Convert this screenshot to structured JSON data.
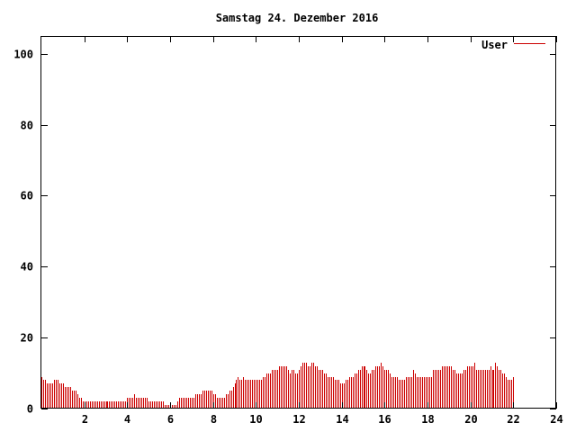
{
  "chart_data": {
    "type": "bar",
    "title": "Samstag 24. Dezember 2016",
    "xlabel": "",
    "ylabel": "",
    "xlim": [
      0,
      24
    ],
    "ylim": [
      0,
      105
    ],
    "xticks": [
      2,
      4,
      6,
      8,
      10,
      12,
      14,
      16,
      18,
      20,
      22,
      24
    ],
    "yticks": [
      0,
      20,
      40,
      60,
      80,
      100
    ],
    "xtick_labels": [
      "2",
      "4",
      "6",
      "8",
      "10",
      "12",
      "14",
      "16",
      "18",
      "20",
      "22",
      "24"
    ],
    "ytick_labels": [
      "0",
      "20",
      "40",
      "60",
      "80",
      "100"
    ],
    "grid": false,
    "legend_position": "top-right",
    "color": "#cc0000",
    "series": [
      {
        "name": "User",
        "sample_interval_minutes": 5,
        "values": [
          9,
          8,
          8,
          7,
          7,
          7,
          7,
          8,
          8,
          8,
          7,
          7,
          7,
          6,
          6,
          6,
          6,
          5,
          5,
          5,
          4,
          3,
          3,
          2,
          2,
          2,
          2,
          2,
          2,
          2,
          2,
          2,
          2,
          2,
          2,
          2,
          2,
          2,
          2,
          2,
          2,
          2,
          2,
          2,
          2,
          2,
          2,
          2,
          3,
          3,
          3,
          3,
          4,
          3,
          3,
          3,
          3,
          3,
          3,
          3,
          2,
          2,
          2,
          2,
          2,
          2,
          2,
          2,
          2,
          1,
          1,
          1,
          1,
          1,
          1,
          1,
          2,
          3,
          3,
          3,
          3,
          3,
          3,
          3,
          3,
          3,
          4,
          4,
          4,
          4,
          5,
          5,
          5,
          5,
          5,
          5,
          4,
          4,
          3,
          3,
          3,
          3,
          3,
          4,
          4,
          5,
          5,
          6,
          7,
          8,
          9,
          8,
          8,
          9,
          8,
          8,
          8,
          8,
          8,
          8,
          8,
          8,
          8,
          8,
          9,
          9,
          10,
          10,
          10,
          11,
          11,
          11,
          11,
          12,
          12,
          12,
          12,
          12,
          11,
          10,
          11,
          11,
          10,
          10,
          11,
          12,
          13,
          13,
          13,
          12,
          12,
          13,
          13,
          12,
          12,
          11,
          11,
          11,
          10,
          10,
          9,
          9,
          9,
          9,
          8,
          8,
          8,
          7,
          7,
          7,
          8,
          8,
          9,
          9,
          9,
          10,
          10,
          11,
          11,
          12,
          12,
          12,
          11,
          10,
          10,
          11,
          11,
          12,
          12,
          12,
          13,
          12,
          11,
          11,
          11,
          10,
          9,
          9,
          9,
          9,
          8,
          8,
          8,
          8,
          9,
          9,
          9,
          9,
          11,
          10,
          9,
          9,
          9,
          9,
          9,
          9,
          9,
          9,
          9,
          11,
          11,
          11,
          11,
          11,
          12,
          12,
          12,
          12,
          12,
          12,
          11,
          11,
          10,
          10,
          10,
          10,
          11,
          11,
          12,
          12,
          12,
          12,
          13,
          11,
          11,
          11,
          11,
          11,
          11,
          11,
          11,
          12,
          11,
          11,
          13,
          12,
          11,
          11,
          10,
          10,
          9,
          8,
          8,
          8,
          9
        ]
      }
    ]
  }
}
